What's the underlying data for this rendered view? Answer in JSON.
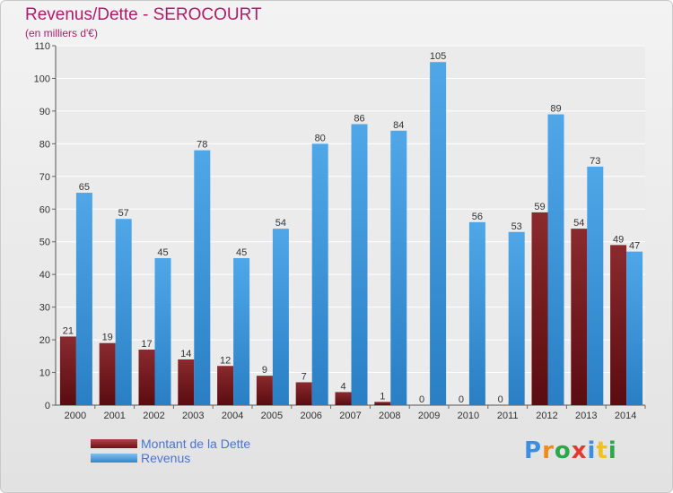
{
  "header": {
    "title": "Revenus/Dette - SEROCOURT",
    "subtitle": "(en milliers d'€)"
  },
  "chart_data": {
    "type": "bar",
    "categories": [
      "2000",
      "2001",
      "2002",
      "2003",
      "2004",
      "2005",
      "2006",
      "2007",
      "2008",
      "2009",
      "2010",
      "2011",
      "2012",
      "2013",
      "2014"
    ],
    "series": [
      {
        "name": "Montant de la Dette",
        "values": [
          21,
          19,
          17,
          14,
          12,
          9,
          7,
          4,
          1,
          0,
          0,
          0,
          59,
          54,
          49
        ],
        "color": "#7a1f22"
      },
      {
        "name": "Revenus",
        "values": [
          65,
          57,
          45,
          78,
          45,
          54,
          80,
          86,
          84,
          105,
          56,
          53,
          89,
          73,
          47
        ],
        "color": "#3d99dd"
      }
    ],
    "yticks": [
      0,
      10,
      20,
      30,
      40,
      50,
      60,
      70,
      80,
      90,
      100,
      110
    ],
    "ylim": [
      0,
      110
    ],
    "grid": true,
    "legend": "bottom-left"
  },
  "logo": {
    "text": "Proxiti",
    "letter_colors": [
      "#3b8fe0",
      "#f08a1c",
      "#2aa84a",
      "#e03b2e",
      "#3b8fe0",
      "#f0c21c",
      "#2aa84a"
    ]
  }
}
